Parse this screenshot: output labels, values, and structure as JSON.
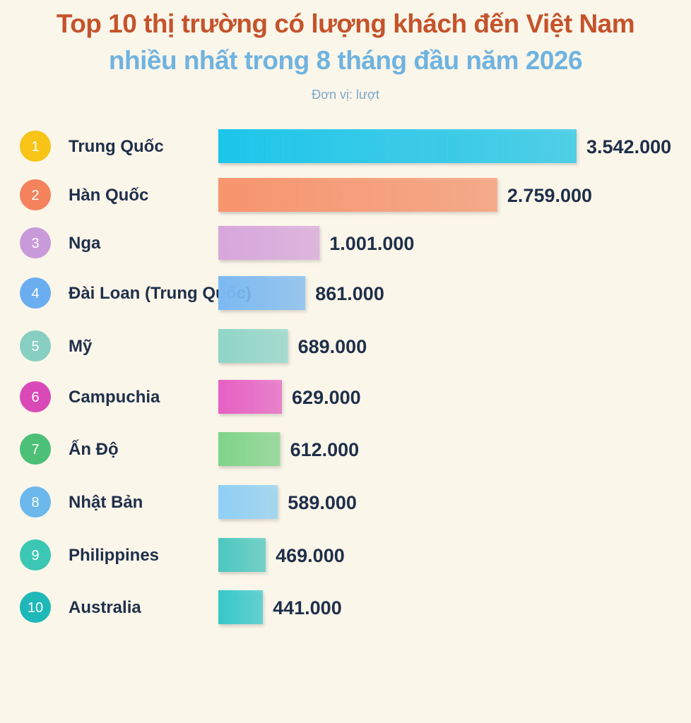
{
  "chart_data": {
    "type": "bar",
    "orientation": "horizontal",
    "title": "Top 10 thị trường có lượng khách đến Việt Nam",
    "subtitle": "nhiều nhất trong 8 tháng đầu năm 2026",
    "unit_label": "Đơn vị: lượt",
    "categories": [
      "Trung Quốc",
      "Hàn Quốc",
      "Nga",
      "Đài Loan (Trung Quốc)",
      "Mỹ",
      "Campuchia",
      "Ấn Độ",
      "Nhật Bản",
      "Philippines",
      "Australia"
    ],
    "ranks": [
      "1",
      "2",
      "3",
      "4",
      "5",
      "6",
      "7",
      "8",
      "9",
      "10"
    ],
    "values": [
      3542000,
      2759000,
      1001000,
      861000,
      689000,
      629000,
      612000,
      589000,
      469000,
      441000
    ],
    "value_labels": [
      "3.542.000",
      "2.759.000",
      "1.001.000",
      "861.000",
      "689.000",
      "629.000",
      "612.000",
      "589.000",
      "469.000",
      "441.000"
    ],
    "colors": [
      "#1cc6ea",
      "#f7956e",
      "#d8a6dc",
      "#7bbaf2",
      "#8fd6c8",
      "#e660c4",
      "#80d48a",
      "#8fd0f5",
      "#4cc8c0",
      "#36c8cc"
    ],
    "rank_colors": [
      "#f7c417",
      "#f4825c",
      "#c99ad9",
      "#6aaef0",
      "#86cfc2",
      "#d94ab8",
      "#4cc077",
      "#6cb8ec",
      "#3cc7b4",
      "#1fb8b8"
    ],
    "grid": false,
    "legend": "none"
  }
}
